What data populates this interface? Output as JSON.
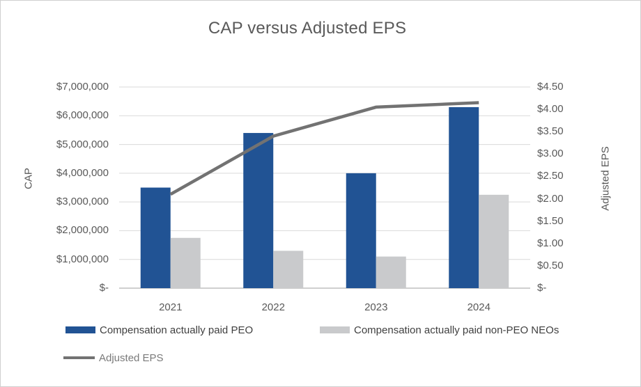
{
  "chart_data": {
    "type": "bar",
    "subtype": "bar-line-combo",
    "title": "CAP versus Adjusted EPS",
    "categories": [
      "2021",
      "2022",
      "2023",
      "2024"
    ],
    "series": [
      {
        "name": "Compensation actually paid PEO",
        "type": "bar",
        "axis": "left",
        "color": "#215394",
        "values": [
          3500000,
          5400000,
          4000000,
          6300000
        ]
      },
      {
        "name": "Compensation actually paid non-PEO NEOs",
        "type": "bar",
        "axis": "left",
        "color": "#c9cacc",
        "values": [
          1750000,
          1300000,
          1100000,
          3250000
        ]
      },
      {
        "name": "Adjusted EPS",
        "type": "line",
        "axis": "right",
        "color": "#727272",
        "values": [
          2.1,
          3.4,
          4.05,
          4.15
        ]
      }
    ],
    "left_axis": {
      "label": "CAP",
      "min": 0,
      "max": 7000000,
      "step": 1000000,
      "tick_labels": [
        "$-",
        "$1,000,000",
        "$2,000,000",
        "$3,000,000",
        "$4,000,000",
        "$5,000,000",
        "$6,000,000",
        "$7,000,000"
      ]
    },
    "right_axis": {
      "label": "Adjusted EPS",
      "min": 0,
      "max": 4.5,
      "step": 0.5,
      "tick_labels": [
        "$-",
        "$0.50",
        "$1.00",
        "$1.50",
        "$2.00",
        "$2.50",
        "$3.00",
        "$3.50",
        "$4.00",
        "$4.50"
      ]
    },
    "grid": true,
    "gridline_color": "#d9d9d9",
    "axis_line_color": "#bfbfbf",
    "legend_position": "bottom-left"
  }
}
